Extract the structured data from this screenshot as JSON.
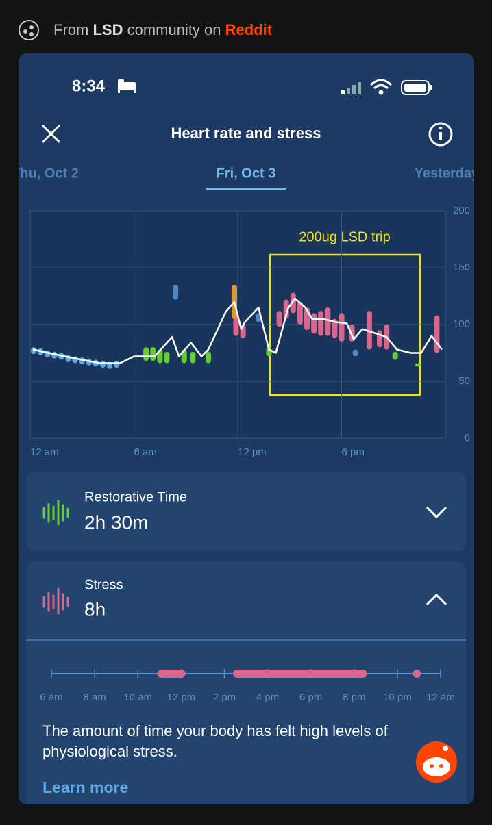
{
  "source_banner": {
    "prefix": "From",
    "community": "LSD",
    "middle": "community on",
    "site": "Reddit"
  },
  "status_bar": {
    "time": "8:34"
  },
  "header": {
    "title": "Heart rate and stress"
  },
  "tabs": {
    "items": [
      "Thu, Oct 2",
      "Fri, Oct 3",
      "Yesterday"
    ],
    "active": 1
  },
  "chart_data": {
    "type": "line",
    "annotation": "200ug LSD trip",
    "x": [
      0.16,
      2,
      4,
      5.2,
      6,
      7.2,
      8.2,
      8.6,
      9.3,
      9.9,
      10.3,
      11.3,
      11.8,
      12.2,
      12.4,
      13.2,
      13.8,
      14.2,
      14.9,
      15.3,
      15.9,
      16.3,
      16.9,
      17.7,
      18.3,
      18.7,
      19.2,
      19.8,
      20.6,
      21.2,
      22,
      22.6,
      23.2,
      23.8
    ],
    "series": [
      {
        "color": "#ffffff",
        "values": [
          78,
          72,
          66,
          66,
          72,
          72,
          89,
          72,
          84,
          72,
          78,
          111,
          120,
          96,
          102,
          115,
          78,
          75,
          114,
          123,
          115,
          105,
          105,
          102,
          101,
          87,
          96,
          93,
          89,
          78,
          75,
          75,
          90,
          78
        ]
      }
    ],
    "ranges": [
      {
        "color": "#5aa9e6",
        "x": [
          0.2,
          0.6,
          1,
          1.4,
          1.8,
          2.2,
          2.6,
          3,
          3.4,
          3.8,
          4.2,
          4.6,
          5
        ],
        "low": [
          74,
          73,
          71,
          70,
          69,
          67,
          66,
          65,
          64,
          63,
          62,
          61,
          62
        ],
        "high": [
          80,
          79,
          77,
          76,
          75,
          73,
          72,
          71,
          70,
          69,
          68,
          67,
          68
        ]
      },
      {
        "color": "#66cc33",
        "x": [
          6.7,
          7.1,
          7.5,
          7.9,
          8.9,
          9.4,
          10.3,
          13.8,
          21.1,
          22.4
        ],
        "low": [
          68,
          68,
          66,
          66,
          66,
          66,
          66,
          72,
          69,
          63
        ],
        "high": [
          80,
          80,
          78,
          76,
          78,
          76,
          76,
          80,
          76,
          66
        ]
      },
      {
        "color": "#d9668c",
        "x": [
          11.9,
          12.3,
          14.4,
          14.8,
          15.2,
          15.6,
          16,
          16.4,
          16.8,
          17.2,
          17.6,
          18,
          18.6,
          19.6,
          20.2,
          20.6,
          23.5
        ],
        "low": [
          90,
          88,
          98,
          105,
          110,
          100,
          95,
          92,
          90,
          90,
          88,
          85,
          85,
          78,
          80,
          78,
          75
        ],
        "high": [
          110,
          100,
          112,
          122,
          128,
          120,
          115,
          110,
          112,
          115,
          105,
          110,
          100,
          112,
          95,
          100,
          108
        ]
      },
      {
        "color": "#d99a3a",
        "x": [
          11.8
        ],
        "low": [
          105
        ],
        "high": [
          135
        ]
      },
      {
        "color": "#4f86c6",
        "x": [
          8.4,
          13.2,
          18.8
        ],
        "low": [
          122,
          102,
          72
        ],
        "high": [
          135,
          110,
          78
        ]
      }
    ],
    "xlim": [
      0,
      24
    ],
    "ylim": [
      0,
      200
    ],
    "yticks": [
      0,
      50,
      100,
      150,
      200
    ],
    "xticks": [
      {
        "value": 0,
        "label": "12 am"
      },
      {
        "value": 6,
        "label": "6 am"
      },
      {
        "value": 12,
        "label": "12 pm"
      },
      {
        "value": 18,
        "label": "6 pm"
      }
    ],
    "grid": true
  },
  "cards": [
    {
      "title": "Restorative Time",
      "value": "2h 30m"
    },
    {
      "title": "Stress",
      "value": "8h"
    }
  ],
  "stress_timeline": {
    "labels": [
      "6 am",
      "8 am",
      "10 am",
      "12 pm",
      "2 pm",
      "4 pm",
      "6 pm",
      "8 pm",
      "10 pm",
      "12 am"
    ],
    "xlim": [
      6,
      24
    ],
    "color": "#d9668c",
    "segments": [
      [
        10.9,
        12.2
      ],
      [
        14.4,
        20.6
      ],
      [
        22.9,
        22.9
      ]
    ]
  },
  "description": "The amount of time your body has felt high levels of physiological stress.",
  "link": "Learn more"
}
